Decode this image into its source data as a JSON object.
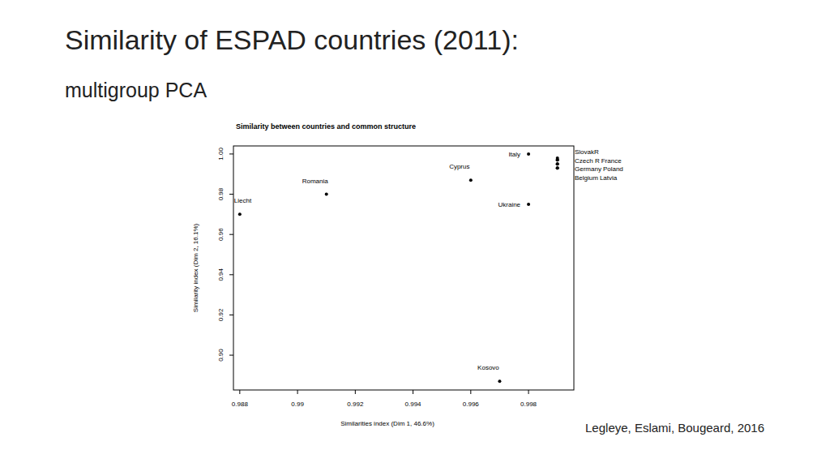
{
  "slide": {
    "title": "Similarity of ESPAD countries (2011):",
    "subtitle": "multigroup PCA",
    "source": "Legleye, Eslami, Bougeard, 2016"
  },
  "chart_data": {
    "type": "scatter",
    "title": "Similarity between countries and common structure",
    "x_label": "Similarities index (Dim 1, 46.6%)",
    "y_label": "Similarity index (Dim 2, 16.1%)",
    "labels": [
      "Liecht",
      "Romania",
      "Cyprus",
      "Italy",
      "Ukraine",
      "Kosovo",
      "SlovakR",
      "Czech R",
      "France",
      "Germany",
      "Poland",
      "Belgium",
      "Latvia"
    ],
    "x": [
      0.988,
      0.991,
      0.996,
      0.998,
      0.998,
      0.997,
      0.999,
      0.999,
      0.999,
      0.999,
      0.999,
      0.999,
      0.999
    ],
    "values": [
      0.97,
      0.98,
      0.987,
      1.0,
      0.975,
      0.887,
      0.998,
      0.997,
      0.997,
      0.995,
      0.995,
      0.993,
      0.993
    ],
    "color": "#000000",
    "marker": "circle",
    "xlim": [
      0.98778,
      0.99957
    ],
    "ylim": [
      0.8827,
      1.004
    ],
    "xticks": [
      0.988,
      0.99,
      0.992,
      0.994,
      0.996,
      0.998
    ],
    "yticks": [
      {
        "value": 0.9,
        "label": "0.90"
      },
      {
        "value": 0.92,
        "label": "0.92"
      },
      {
        "value": 0.94,
        "label": "0.94"
      },
      {
        "value": 0.96,
        "label": "0.96"
      },
      {
        "value": 0.98,
        "label": "0.98"
      },
      {
        "value": 1.0,
        "label": "1.00"
      }
    ],
    "grid": false
  }
}
